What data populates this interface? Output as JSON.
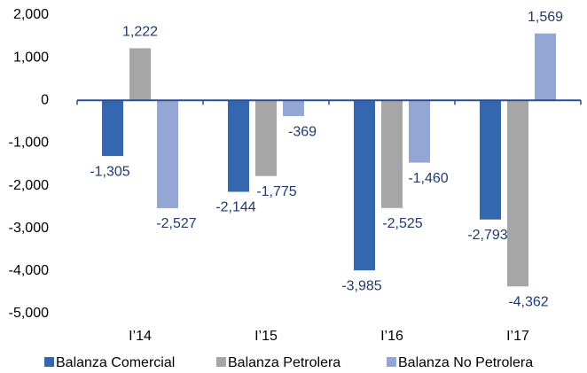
{
  "chart_data": {
    "type": "bar",
    "categories": [
      "I’14",
      "I’15",
      "I’16",
      "I’17"
    ],
    "series": [
      {
        "name": "Balanza Comercial",
        "color": "#3566b0",
        "values": [
          -1305,
          -2144,
          -3985,
          -2793
        ],
        "value_labels": [
          "-1,305",
          "-2,144",
          "-3,985",
          "-2,793"
        ]
      },
      {
        "name": "Balanza Petrolera",
        "color": "#a6a6a6",
        "values": [
          1222,
          -1775,
          -2525,
          -4362
        ],
        "value_labels": [
          "1,222",
          "-1,775",
          "-2,525",
          "-4,362"
        ]
      },
      {
        "name": "Balanza No Petrolera",
        "color": "#93a6d4",
        "values": [
          -2527,
          -369,
          -1460,
          1569
        ],
        "value_labels": [
          "-2,527",
          "-369",
          "-1,460",
          "1,569"
        ]
      }
    ],
    "ylim": [
      -5000,
      2000
    ],
    "yticks": [
      {
        "value": -5000,
        "label": "-5,000"
      },
      {
        "value": -4000,
        "label": "-4,000"
      },
      {
        "value": -3000,
        "label": "-3,000"
      },
      {
        "value": -2000,
        "label": "-2,000"
      },
      {
        "value": -1000,
        "label": "-1,000"
      },
      0,
      {
        "value": 1000,
        "label": "1,000"
      },
      {
        "value": 2000,
        "label": "2,000"
      }
    ],
    "grid": false
  }
}
